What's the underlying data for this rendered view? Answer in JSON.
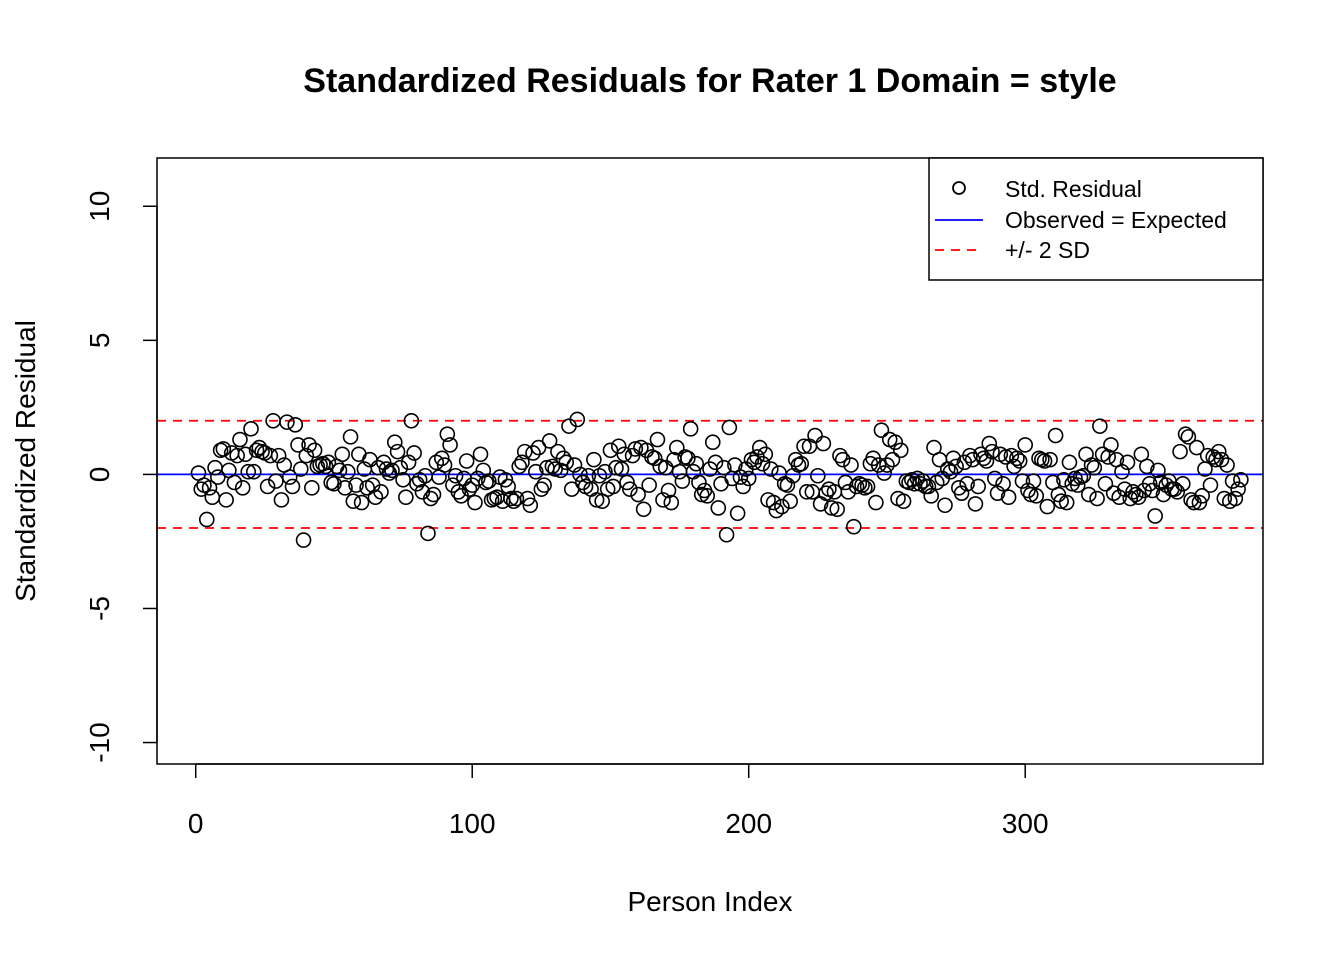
{
  "chart_data": {
    "type": "scatter",
    "title": "Standardized Residuals for Rater 1 Domain = style",
    "xlabel": "Person Index",
    "ylabel": "Standardized Residual",
    "xlim": [
      -14,
      386
    ],
    "ylim": [
      -10.8,
      11.8
    ],
    "x_ticks": [
      0,
      100,
      200,
      300
    ],
    "y_ticks": [
      -10,
      -5,
      0,
      5,
      10
    ],
    "grid": false,
    "legend_position": "top-right",
    "legend": [
      {
        "label": "Std. Residual",
        "kind": "point",
        "color": "#000000"
      },
      {
        "label": "Observed = Expected",
        "kind": "line",
        "color": "#0000ff"
      },
      {
        "label": "+/- 2 SD",
        "kind": "dashed",
        "color": "#ff0000"
      }
    ],
    "reference_lines": [
      {
        "y": 0,
        "color": "#0000ff",
        "style": "solid"
      },
      {
        "y": 2,
        "color": "#ff0000",
        "style": "dashed"
      },
      {
        "y": -2,
        "color": "#ff0000",
        "style": "dashed"
      }
    ],
    "series": [
      {
        "marker": "open-circle",
        "color": "#000000",
        "y": [
          0.05,
          -0.55,
          -0.4,
          -1.68,
          -0.5,
          -0.85,
          0.25,
          -0.1,
          0.9,
          0.95,
          -0.95,
          0.15,
          0.8,
          -0.3,
          0.7,
          1.3,
          -0.5,
          0.75,
          0.1,
          1.7,
          0.1,
          0.9,
          1.0,
          0.85,
          0.8,
          -0.45,
          0.7,
          2.0,
          -0.25,
          0.7,
          -0.95,
          0.35,
          1.95,
          -0.1,
          -0.45,
          1.85,
          1.1,
          0.2,
          -2.45,
          0.7,
          1.1,
          -0.5,
          0.9,
          0.3,
          0.35,
          0.4,
          0.3,
          0.45,
          -0.3,
          -0.35,
          0.3,
          0.15,
          0.75,
          -0.5,
          0.1,
          1.4,
          -1.0,
          -0.4,
          0.75,
          -1.05,
          0.2,
          -0.5,
          0.55,
          -0.4,
          -0.85,
          0.25,
          -0.65,
          0.45,
          0.2,
          0.05,
          0.15,
          1.2,
          0.85,
          0.25,
          -0.2,
          -0.85,
          0.45,
          2.0,
          0.8,
          -0.35,
          -0.2,
          -0.65,
          -0.05,
          -2.2,
          -0.9,
          -0.75,
          0.45,
          -0.1,
          0.6,
          0.35,
          1.5,
          1.1,
          -0.4,
          -0.05,
          -0.65,
          -0.8,
          -0.15,
          0.5,
          -0.55,
          -0.4,
          -1.05,
          -0.15,
          0.75,
          0.15,
          -0.3,
          -0.25,
          -0.95,
          -0.9,
          -0.85,
          -0.1,
          -1.0,
          -0.2,
          -0.45,
          -0.9,
          -1.0,
          -0.9,
          0.3,
          0.45,
          0.85,
          -0.9,
          -1.15,
          0.8,
          0.1,
          1.0,
          -0.55,
          -0.4,
          0.25,
          1.25,
          0.3,
          0.2,
          0.85,
          0.15,
          0.6,
          0.45,
          1.8,
          -0.55,
          0.35,
          2.05,
          0.0,
          -0.3,
          -0.45,
          -0.05,
          -0.55,
          0.55,
          -0.95,
          -0.05,
          -1.0,
          0.1,
          -0.55,
          0.9,
          -0.45,
          0.25,
          1.05,
          0.2,
          0.75,
          -0.3,
          -0.55,
          0.7,
          0.95,
          -0.75,
          1.0,
          -1.3,
          0.9,
          -0.4,
          0.65,
          0.6,
          1.3,
          0.3,
          -0.95,
          0.25,
          -0.6,
          -1.05,
          0.55,
          1.0,
          0.1,
          -0.25,
          0.65,
          0.6,
          1.7,
          0.1,
          0.4,
          -0.3,
          -0.75,
          -0.6,
          -0.8,
          0.2,
          1.2,
          0.45,
          -1.25,
          -0.35,
          0.25,
          -2.25,
          1.75,
          -0.15,
          0.35,
          -1.45,
          -0.1,
          -0.45,
          0.2,
          -0.15,
          0.55,
          0.45,
          0.65,
          1.0,
          0.4,
          0.75,
          -0.95,
          0.2,
          -1.05,
          -1.35,
          0.05,
          -1.2,
          -0.35,
          -0.4,
          -1.0,
          -0.05,
          0.55,
          0.35,
          0.4,
          1.05,
          -0.65,
          1.05,
          -0.65,
          1.45,
          -0.05,
          -1.1,
          1.15,
          -0.7,
          -0.55,
          -1.25,
          -0.65,
          -1.3,
          0.7,
          0.55,
          -0.3,
          -0.65,
          0.35,
          -1.95,
          -0.45,
          -0.35,
          -0.4,
          -0.5,
          -0.45,
          0.4,
          0.6,
          -1.05,
          0.35,
          1.65,
          0.05,
          0.35,
          1.3,
          0.55,
          1.2,
          -0.9,
          0.9,
          -1.0,
          -0.25,
          -0.3,
          -0.2,
          -0.35,
          -0.15,
          -0.35,
          -0.25,
          -0.45,
          -0.45,
          -0.8,
          1.0,
          -0.3,
          0.55,
          -0.15,
          -1.15,
          0.2,
          0.1,
          0.6,
          0.3,
          -0.5,
          -0.7,
          0.45,
          -0.35,
          0.7,
          0.55,
          -1.1,
          -0.45,
          0.75,
          0.6,
          0.5,
          1.15,
          0.85,
          -0.15,
          -0.7,
          0.75,
          -0.35,
          0.65,
          -0.85,
          0.7,
          0.3,
          0.6,
          0.5,
          -0.25,
          1.1,
          -0.6,
          -0.75,
          -0.25,
          -0.8,
          0.6,
          0.55,
          0.5,
          -1.2,
          0.55,
          -0.3,
          1.45,
          -0.75,
          -1.0,
          -0.2,
          -1.05,
          0.45,
          -0.35,
          -0.15,
          -0.4,
          -0.1,
          -0.05,
          0.75,
          -0.75,
          0.35,
          0.25,
          -0.9,
          1.8,
          0.75,
          -0.35,
          0.65,
          1.1,
          -0.7,
          0.55,
          -0.85,
          0.1,
          -0.55,
          0.45,
          -0.9,
          -0.65,
          -0.75,
          -0.85,
          0.75,
          -0.6,
          0.3,
          -0.35,
          -0.6,
          -1.55,
          0.15,
          -0.3,
          -0.75,
          -0.4,
          -0.25,
          -0.55,
          -0.55,
          -0.65,
          0.85,
          -0.35,
          1.5,
          1.4,
          -0.95,
          -1.05,
          1.0,
          -1.05,
          -0.8,
          0.2,
          0.7,
          -0.4,
          0.65,
          0.55,
          0.85,
          0.55,
          -0.9,
          0.35,
          -1.0,
          -0.25,
          -0.9,
          -0.55,
          -0.2
        ]
      }
    ]
  }
}
